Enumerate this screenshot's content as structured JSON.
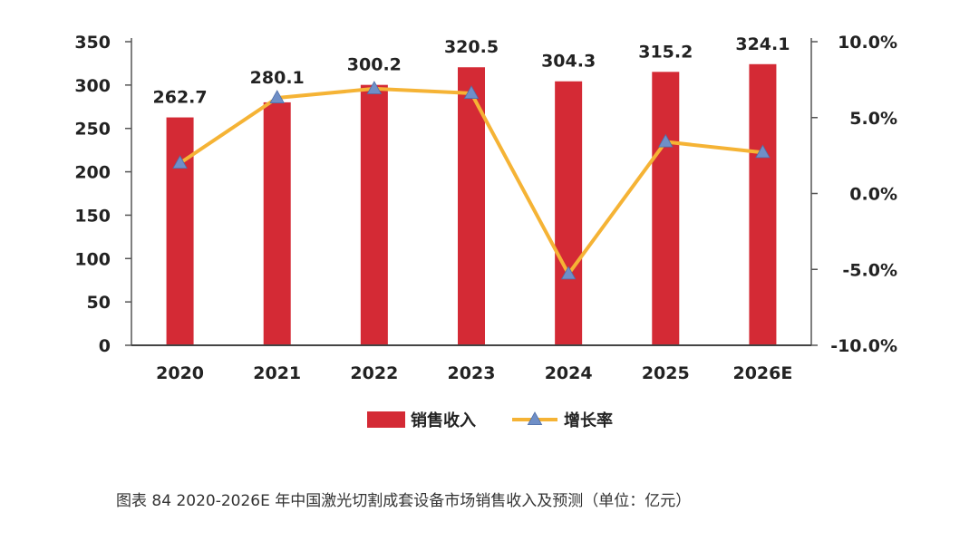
{
  "chart_data": {
    "type": "bar",
    "categories": [
      "2020",
      "2021",
      "2022",
      "2023",
      "2024",
      "2025",
      "2026E"
    ],
    "series": [
      {
        "name": "销售收入",
        "type": "bar",
        "axis": "left",
        "color": "#d42a35",
        "values": [
          262.7,
          280.1,
          300.2,
          320.5,
          304.3,
          315.2,
          324.1
        ]
      },
      {
        "name": "增长率",
        "type": "line",
        "axis": "right",
        "color": "#f5b335",
        "marker": "triangle",
        "marker_color": "#6f8fc7",
        "values": [
          2.0,
          6.3,
          6.9,
          6.6,
          -5.3,
          3.4,
          2.7
        ]
      }
    ],
    "y_left": {
      "lim": [
        0,
        350
      ],
      "ticks": [
        {
          "value": 0,
          "label": "0"
        },
        {
          "value": 50,
          "label": "50"
        },
        {
          "value": 100,
          "label": "100"
        },
        {
          "value": 150,
          "label": "150"
        },
        {
          "value": 200,
          "label": "200"
        },
        {
          "value": 250,
          "label": "250"
        },
        {
          "value": 300,
          "label": "300"
        },
        {
          "value": 350,
          "label": "350"
        }
      ]
    },
    "y_right": {
      "lim": [
        -10,
        10
      ],
      "unit": "%",
      "ticks": [
        {
          "value": 10,
          "label": "10.0%"
        },
        {
          "value": 5,
          "label": "5.0%"
        },
        {
          "value": 0,
          "label": "0.0%"
        },
        {
          "value": -5,
          "label": "-5.0%"
        },
        {
          "value": -10,
          "label": "-10.0%"
        }
      ]
    },
    "data_labels": [
      "262.7",
      "280.1",
      "300.2",
      "320.5",
      "304.3",
      "315.2",
      "324.1"
    ],
    "legend": {
      "position": "bottom",
      "items": [
        {
          "label": "销售收入",
          "symbol": "bar"
        },
        {
          "label": "增长率",
          "symbol": "line-triangle"
        }
      ]
    },
    "grid": false
  },
  "caption": "图表 84   2020-2026E 年中国激光切割成套设备市场销售收入及预测（单位：亿元）"
}
